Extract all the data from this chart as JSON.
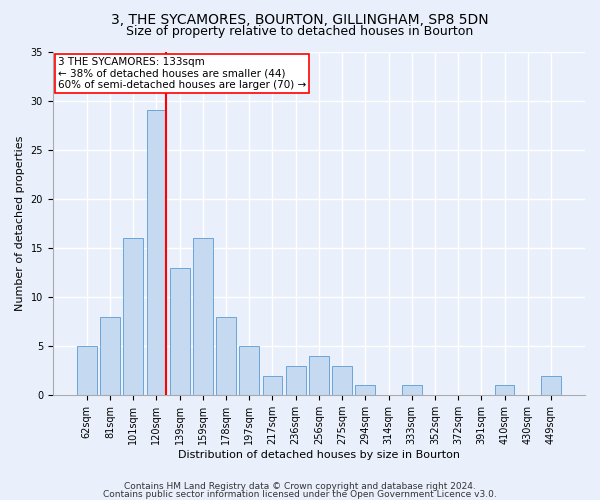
{
  "title": "3, THE SYCAMORES, BOURTON, GILLINGHAM, SP8 5DN",
  "subtitle": "Size of property relative to detached houses in Bourton",
  "xlabel": "Distribution of detached houses by size in Bourton",
  "ylabel": "Number of detached properties",
  "footnote1": "Contains HM Land Registry data © Crown copyright and database right 2024.",
  "footnote2": "Contains public sector information licensed under the Open Government Licence v3.0.",
  "categories": [
    "62sqm",
    "81sqm",
    "101sqm",
    "120sqm",
    "139sqm",
    "159sqm",
    "178sqm",
    "197sqm",
    "217sqm",
    "236sqm",
    "256sqm",
    "275sqm",
    "294sqm",
    "314sqm",
    "333sqm",
    "352sqm",
    "372sqm",
    "391sqm",
    "410sqm",
    "430sqm",
    "449sqm"
  ],
  "values": [
    5,
    8,
    16,
    29,
    13,
    16,
    8,
    5,
    2,
    3,
    4,
    3,
    1,
    0,
    1,
    0,
    0,
    0,
    1,
    0,
    2
  ],
  "bar_color": "#c5d9f0",
  "bar_edge_color": "#5b9bd5",
  "vline_index": 3,
  "property_line_label": "3 THE SYCAMORES: 133sqm",
  "annotation_line2": "← 38% of detached houses are smaller (44)",
  "annotation_line3": "60% of semi-detached houses are larger (70) →",
  "vline_color": "red",
  "ylim": [
    0,
    35
  ],
  "yticks": [
    0,
    5,
    10,
    15,
    20,
    25,
    30,
    35
  ],
  "fig_bg_color": "#eaf0fb",
  "plot_bg_color": "#eaf0fb",
  "grid_color": "white",
  "title_fontsize": 10,
  "subtitle_fontsize": 9,
  "label_fontsize": 8,
  "tick_fontsize": 7,
  "annot_fontsize": 7.5,
  "footnote_fontsize": 6.5
}
